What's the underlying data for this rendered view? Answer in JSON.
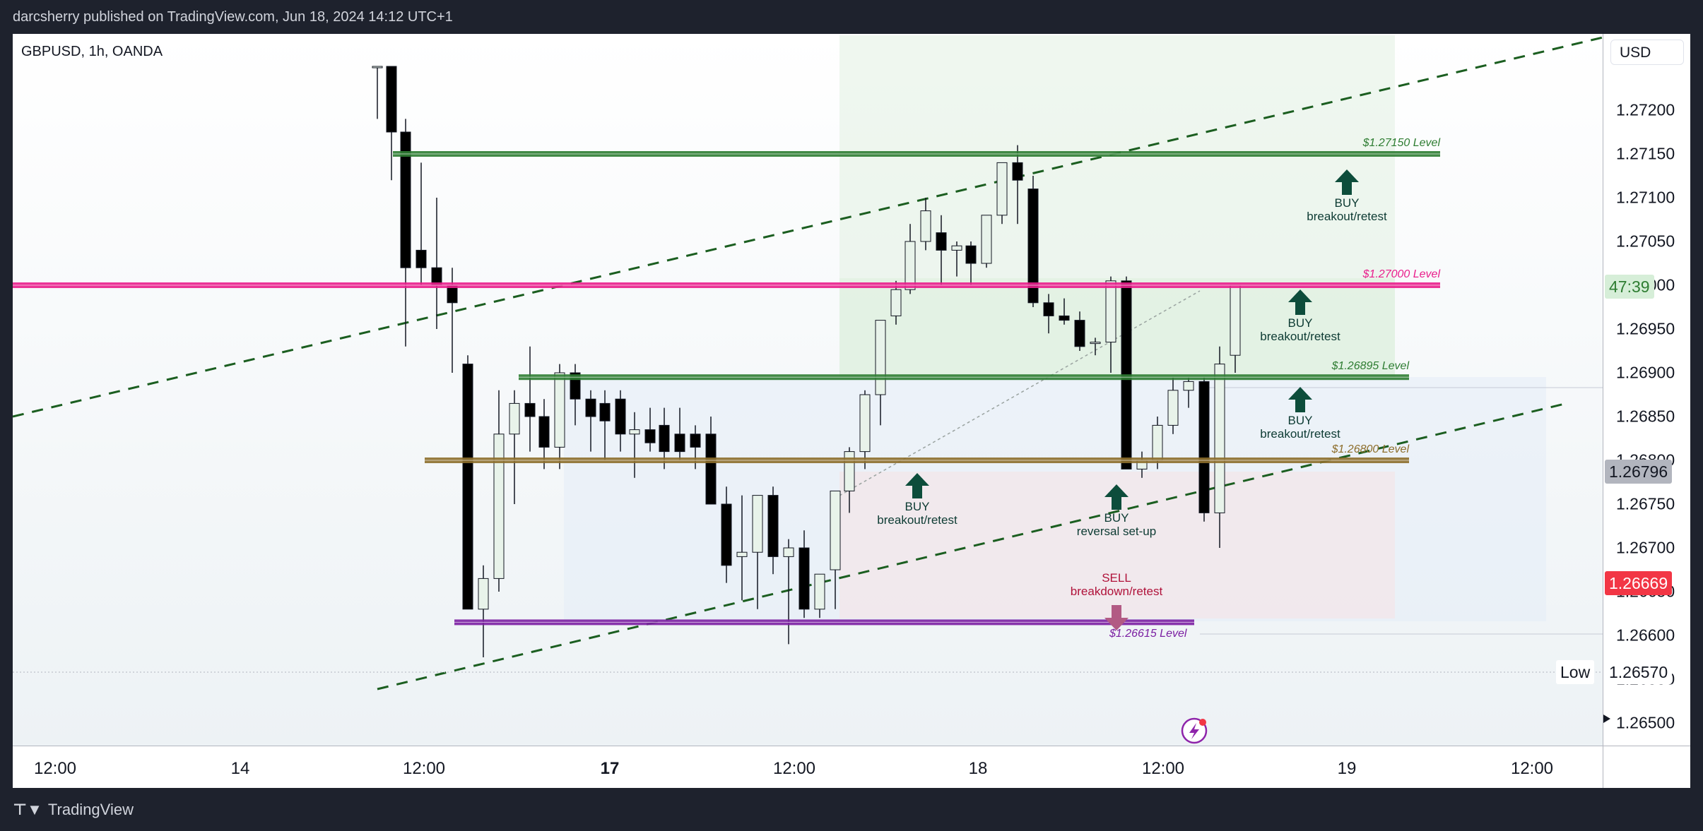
{
  "header": {
    "publisher": "darcsherry published on TradingView.com, Jun 18, 2024 14:12 UTC+1"
  },
  "chart": {
    "symbol_line": "GBPUSD, 1h, OANDA",
    "currency_button": "USD",
    "countdown": "47:39",
    "current_price": "1.26796",
    "low_price": "1.26669",
    "low_label": "Low",
    "low_value": "1.26570"
  },
  "price_axis": [
    "1.27200",
    "1.27150",
    "1.27100",
    "1.27050",
    "1.27000",
    "1.26950",
    "1.26900",
    "1.26850",
    "1.26800",
    "1.26750",
    "1.26700",
    "1.26650",
    "1.26600",
    "1.26550",
    "1.26500"
  ],
  "time_axis": [
    {
      "label": "12:00",
      "bold": false
    },
    {
      "label": "14",
      "bold": false
    },
    {
      "label": "12:00",
      "bold": false
    },
    {
      "label": "17",
      "bold": true
    },
    {
      "label": "12:00",
      "bold": false
    },
    {
      "label": "18",
      "bold": false
    },
    {
      "label": "12:00",
      "bold": false
    },
    {
      "label": "19",
      "bold": false
    },
    {
      "label": "12:00",
      "bold": false
    }
  ],
  "levels": [
    {
      "label": "$1.27150 Level",
      "price": 1.2715,
      "color": "#2e7d32"
    },
    {
      "label": "$1.27000 Level",
      "price": 1.27,
      "color": "#e91e8c"
    },
    {
      "label": "$1.26895 Level",
      "price": 1.26895,
      "color": "#2e7d32"
    },
    {
      "label": "$1.26800 Level",
      "price": 1.268,
      "color": "#8d6e2b"
    },
    {
      "label": "$1.26615 Level",
      "price": 1.26615,
      "color": "#7b1fa2"
    }
  ],
  "signals": [
    {
      "title": "BUY",
      "sub": "breakout/retest"
    },
    {
      "title": "BUY",
      "sub": "breakout/retest"
    },
    {
      "title": "BUY",
      "sub": "breakout/retest"
    },
    {
      "title": "BUY",
      "sub": "breakout/retest"
    },
    {
      "title": "BUY",
      "sub": "reversal set-up"
    },
    {
      "title": "SELL",
      "sub": "breakdown/retest"
    }
  ],
  "footer": {
    "brand": "TradingView"
  },
  "colors": {
    "bull_fill": "#e8f3ea",
    "bear_fill": "#000000",
    "accent_red": "#f23645"
  }
}
